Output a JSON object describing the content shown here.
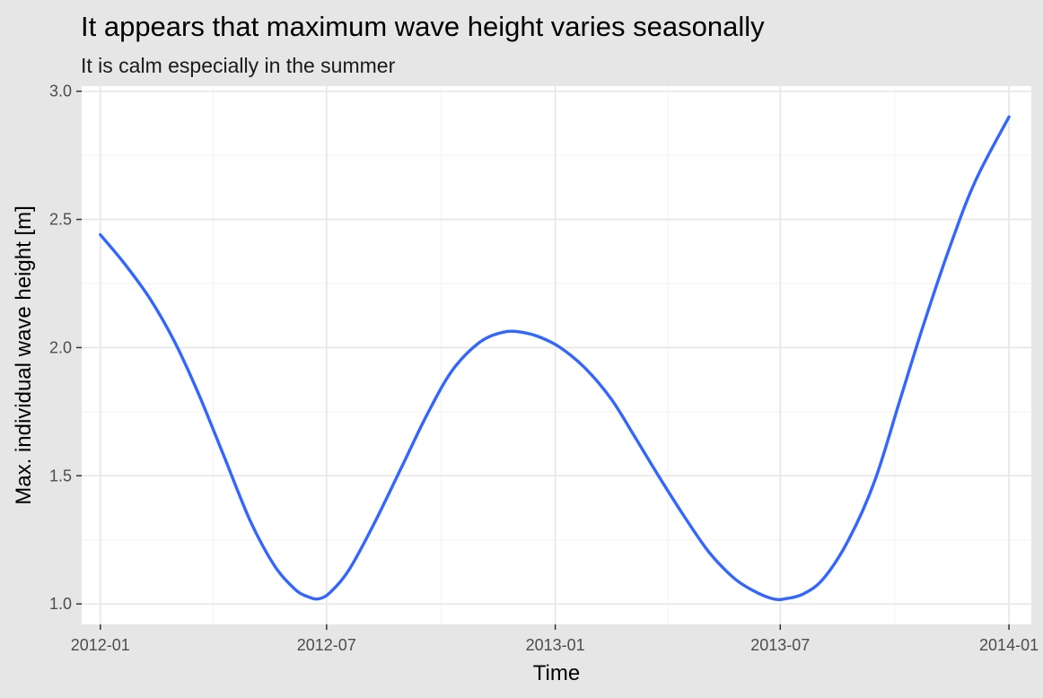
{
  "chart_data": {
    "type": "line",
    "title": "It appears that maximum wave height varies seasonally",
    "subtitle": "It is calm especially in the summer",
    "xlabel": "Time",
    "ylabel": "Max. individual wave height [m]",
    "x_ticks": [
      "2012-01",
      "2012-07",
      "2013-01",
      "2013-07",
      "2014-01"
    ],
    "y_ticks": [
      "1.0",
      "1.5",
      "2.0",
      "2.5",
      "3.0"
    ],
    "xlim": [
      "2011-12-17",
      "2014-01-19"
    ],
    "ylim": [
      0.92,
      3.02
    ],
    "grid": true,
    "line_color": "#3366ff",
    "series": [
      {
        "x": [
          "2012-01-01",
          "2012-01-20",
          "2012-02-10",
          "2012-03-01",
          "2012-03-20",
          "2012-04-10",
          "2012-05-01",
          "2012-05-20",
          "2012-06-05",
          "2012-06-15",
          "2012-06-25",
          "2012-07-05",
          "2012-07-20",
          "2012-08-10",
          "2012-09-01",
          "2012-09-20",
          "2012-10-10",
          "2012-11-01",
          "2012-11-20",
          "2012-12-05",
          "2012-12-20",
          "2013-01-05",
          "2013-01-25",
          "2013-02-15",
          "2013-03-05",
          "2013-03-25",
          "2013-04-15",
          "2013-05-05",
          "2013-05-25",
          "2013-06-10",
          "2013-06-25",
          "2013-07-05",
          "2013-07-20",
          "2013-08-05",
          "2013-08-25",
          "2013-09-15",
          "2013-10-05",
          "2013-10-25",
          "2013-11-15",
          "2013-12-05",
          "2014-01-01"
        ],
        "y": [
          2.44,
          2.33,
          2.19,
          2.02,
          1.82,
          1.57,
          1.32,
          1.15,
          1.06,
          1.03,
          1.02,
          1.05,
          1.14,
          1.33,
          1.55,
          1.74,
          1.91,
          2.02,
          2.06,
          2.06,
          2.04,
          2.0,
          1.92,
          1.8,
          1.66,
          1.5,
          1.34,
          1.2,
          1.1,
          1.05,
          1.02,
          1.02,
          1.04,
          1.1,
          1.25,
          1.48,
          1.79,
          2.1,
          2.4,
          2.65,
          2.9
        ]
      }
    ]
  }
}
